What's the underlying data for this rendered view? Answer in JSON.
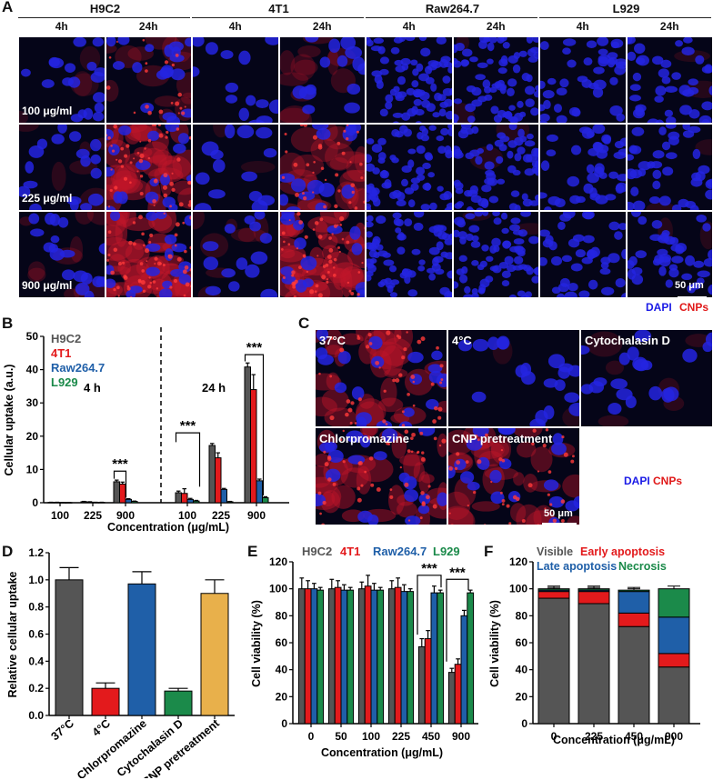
{
  "panelA": {
    "label": "A",
    "cell_lines": [
      "H9C2",
      "4T1",
      "Raw264.7",
      "L929"
    ],
    "timepoints": [
      "4h",
      "24h"
    ],
    "concentrations": [
      "100 μg/ml",
      "225 μg/ml",
      "900 μg/ml"
    ],
    "scale_bar": "50 μm",
    "legend_dapi": "DAPI",
    "legend_cnp": "CNPs"
  },
  "panelB": {
    "label": "B",
    "ylabel": "Cellular uptake (a.u.)",
    "xlabel": "Concentration (μg/mL)",
    "legend": [
      "H9C2",
      "4T1",
      "Raw264.7",
      "L929"
    ],
    "annot_4h": "4 h",
    "annot_24h": "24 h",
    "sig": "***"
  },
  "panelC": {
    "label": "C",
    "conditions": [
      "37°C",
      "4°C",
      "Cytochalasin D",
      "Chlorpromazine",
      "CNP pretreatment"
    ],
    "scale_bar": "50 μm",
    "legend_dapi": "DAPI",
    "legend_cnp": "CNPs"
  },
  "panelD": {
    "label": "D",
    "ylabel": "Relative cellular uptake"
  },
  "panelE": {
    "label": "E",
    "ylabel": "Cell viability (%)",
    "xlabel": "Concentration (μg/mL)",
    "legend": [
      "H9C2",
      "4T1",
      "Raw264.7",
      "L929"
    ],
    "sig": "***"
  },
  "panelF": {
    "label": "F",
    "ylabel": "Cell viability (%)",
    "xlabel": "Concentration (μg/mL)",
    "legend": [
      "Visible",
      "Early apoptosis",
      "Late apoptosis",
      "Necrosis"
    ]
  },
  "colors": {
    "h9c2": "#555555",
    "t41": "#e31a1c",
    "raw": "#1f5fa8",
    "l929": "#1b8a4a",
    "gold": "#e8b04b",
    "dapi": "#1a1ae6",
    "cnp": "#e01818"
  },
  "chart_data": [
    {
      "panel": "B",
      "type": "bar",
      "ylabel": "Cellular uptake (a.u.)",
      "xlabel": "Concentration (μg/mL)",
      "ylim": [
        0,
        50
      ],
      "yticks": [
        0,
        10,
        20,
        30,
        40,
        50
      ],
      "groups": [
        {
          "time": "4 h",
          "categories": [
            "100",
            "225",
            "900"
          ]
        },
        {
          "time": "24 h",
          "categories": [
            "100",
            "225",
            "900"
          ]
        }
      ],
      "series": [
        {
          "name": "H9C2",
          "values": [
            0.1,
            0.3,
            6.3,
            3.0,
            17.2,
            40.8
          ],
          "errors": [
            0.05,
            0.1,
            0.5,
            0.5,
            0.6,
            1.2
          ]
        },
        {
          "name": "4T1",
          "values": [
            0.1,
            0.2,
            5.6,
            2.8,
            13.5,
            34.0
          ],
          "errors": [
            0.05,
            0.1,
            0.6,
            1.4,
            1.5,
            4.5
          ]
        },
        {
          "name": "Raw264.7",
          "values": [
            0.05,
            0.1,
            1.0,
            1.0,
            4.0,
            6.6
          ],
          "errors": [
            0.02,
            0.05,
            0.2,
            0.3,
            0.3,
            0.5
          ]
        },
        {
          "name": "L929",
          "values": [
            0.05,
            0.1,
            0.4,
            0.5,
            0.3,
            1.5
          ],
          "errors": [
            0.02,
            0.05,
            0.1,
            0.2,
            0.1,
            0.3
          ]
        }
      ]
    },
    {
      "panel": "D",
      "type": "bar",
      "ylabel": "Relative cellular uptake",
      "ylim": [
        0,
        1.2
      ],
      "yticks": [
        0.0,
        0.2,
        0.4,
        0.6,
        0.8,
        1.0,
        1.2
      ],
      "categories": [
        "37°C",
        "4°C",
        "Chlorpromazine",
        "Cytochalasin D",
        "CNP pretreatment"
      ],
      "values": [
        1.0,
        0.2,
        0.97,
        0.18,
        0.9
      ],
      "errors": [
        0.09,
        0.04,
        0.09,
        0.02,
        0.1
      ]
    },
    {
      "panel": "E",
      "type": "bar",
      "ylabel": "Cell viability (%)",
      "xlabel": "Concentration (μg/mL)",
      "ylim": [
        0,
        120
      ],
      "yticks": [
        0,
        20,
        40,
        60,
        80,
        100,
        120
      ],
      "categories": [
        "0",
        "50",
        "100",
        "225",
        "450",
        "900"
      ],
      "series": [
        {
          "name": "H9C2",
          "values": [
            100,
            100,
            100,
            100,
            57,
            38
          ],
          "errors": [
            8,
            7,
            5,
            6,
            6,
            3
          ]
        },
        {
          "name": "4T1",
          "values": [
            100,
            101,
            102,
            101,
            63,
            44
          ],
          "errors": [
            6,
            5,
            8,
            7,
            6,
            4
          ]
        },
        {
          "name": "Raw264.7",
          "values": [
            100,
            99,
            99,
            98,
            97,
            80
          ],
          "errors": [
            4,
            4,
            5,
            5,
            5,
            4
          ]
        },
        {
          "name": "L929",
          "values": [
            99,
            99,
            99,
            98,
            97,
            97
          ],
          "errors": [
            2,
            2,
            2,
            2,
            2,
            2
          ]
        }
      ]
    },
    {
      "panel": "F",
      "type": "bar",
      "stacked": true,
      "ylabel": "Cell viability (%)",
      "xlabel": "Concentration (μg/mL)",
      "ylim": [
        0,
        120
      ],
      "yticks": [
        0,
        20,
        40,
        60,
        80,
        100,
        120
      ],
      "categories": [
        "0",
        "225",
        "450",
        "900"
      ],
      "series": [
        {
          "name": "Visible",
          "values": [
            93,
            89,
            72,
            42
          ]
        },
        {
          "name": "Early apoptosis",
          "values": [
            5,
            9,
            10,
            10
          ]
        },
        {
          "name": "Late apoptosis",
          "values": [
            1,
            1,
            16,
            27
          ]
        },
        {
          "name": "Necrosis",
          "values": [
            1,
            1,
            1,
            21
          ]
        }
      ]
    }
  ]
}
